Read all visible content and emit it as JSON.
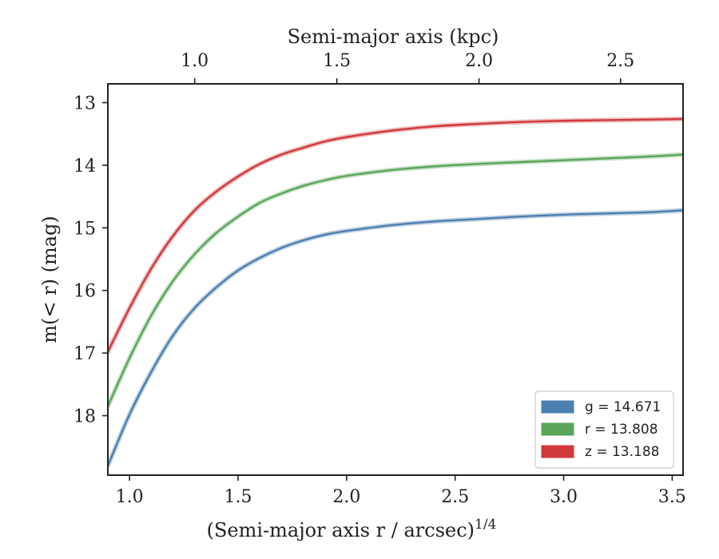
{
  "chart_data": {
    "type": "line",
    "xlabel": "(Semi-major axis r / arcsec)",
    "xlabel_sup": "1/4",
    "ylabel": "m(< r) (mag)",
    "top_xlabel": "Semi-major axis (kpc)",
    "xlim": [
      0.9,
      3.55
    ],
    "ylim": [
      18.95,
      12.7
    ],
    "y_inverted": true,
    "x_ticks": [
      1.0,
      1.5,
      2.0,
      2.5,
      3.0,
      3.5
    ],
    "x_tick_labels": [
      "1.0",
      "1.5",
      "2.0",
      "2.5",
      "3.0",
      "3.5"
    ],
    "y_ticks": [
      13,
      14,
      15,
      16,
      17,
      18
    ],
    "y_tick_labels": [
      "13",
      "14",
      "15",
      "16",
      "17",
      "18"
    ],
    "top_ticks_kpc": [
      1.0,
      1.5,
      2.0,
      2.5
    ],
    "top_tick_labels": [
      "1.0",
      "1.5",
      "2.0",
      "2.5"
    ],
    "top_tick_x_equiv": [
      1.3,
      1.955,
      2.61,
      3.262
    ],
    "top_xlim_kpc": [
      0.72,
      2.7
    ],
    "grid": false,
    "legend_position": "bottom-right",
    "x": [
      0.9,
      1.0,
      1.1,
      1.2,
      1.3,
      1.4,
      1.5,
      1.6,
      1.7,
      1.8,
      1.9,
      2.0,
      2.2,
      2.4,
      2.6,
      2.8,
      3.0,
      3.2,
      3.4,
      3.55
    ],
    "series": [
      {
        "name": "g",
        "label": "g = 14.671",
        "color": "#4c7fb0",
        "values": [
          18.8,
          17.98,
          17.3,
          16.72,
          16.28,
          15.95,
          15.68,
          15.48,
          15.32,
          15.2,
          15.11,
          15.05,
          14.96,
          14.9,
          14.86,
          14.82,
          14.79,
          14.77,
          14.75,
          14.72
        ]
      },
      {
        "name": "r",
        "label": "r = 13.808",
        "color": "#5ba55b",
        "values": [
          17.85,
          17.08,
          16.4,
          15.85,
          15.42,
          15.08,
          14.82,
          14.6,
          14.45,
          14.33,
          14.24,
          14.17,
          14.08,
          14.02,
          13.98,
          13.95,
          13.92,
          13.89,
          13.86,
          13.83
        ]
      },
      {
        "name": "z",
        "label": "z = 13.188",
        "color": "#d0393b",
        "values": [
          16.98,
          16.28,
          15.65,
          15.13,
          14.72,
          14.42,
          14.18,
          13.98,
          13.83,
          13.72,
          13.62,
          13.55,
          13.45,
          13.38,
          13.34,
          13.31,
          13.29,
          13.28,
          13.27,
          13.26
        ]
      }
    ]
  }
}
